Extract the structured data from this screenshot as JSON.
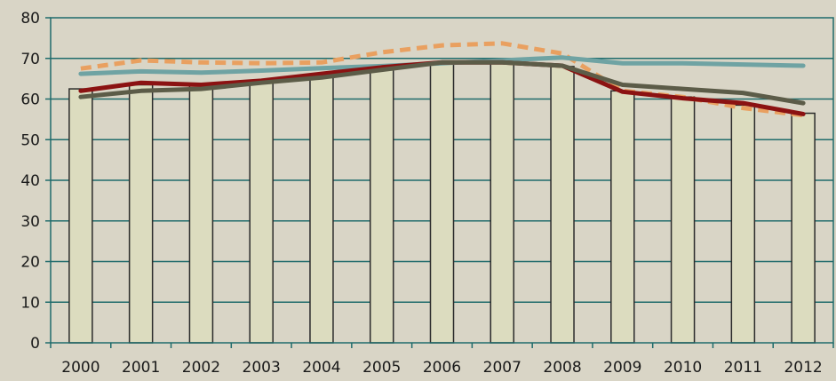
{
  "chart_data": {
    "type": "bar",
    "title": "",
    "xlabel": "",
    "ylabel": "",
    "ylim": [
      0,
      80
    ],
    "yticks": [
      0,
      10,
      20,
      30,
      40,
      50,
      60,
      70,
      80
    ],
    "grid": true,
    "legend": "none",
    "categories": [
      "2000",
      "2001",
      "2002",
      "2003",
      "2004",
      "2005",
      "2006",
      "2007",
      "2008",
      "2009",
      "2010",
      "2011",
      "2012"
    ],
    "bars": {
      "values": [
        62.5,
        63.5,
        63.2,
        64.5,
        66,
        67.5,
        68.8,
        69.3,
        68,
        62,
        60.5,
        58.5,
        56.5
      ],
      "color": "#dcdcbf",
      "edge_color": "#2b2b2b"
    },
    "lines": [
      {
        "values": [
          67.5,
          69.5,
          69,
          68.8,
          69,
          71.5,
          73.2,
          73.7,
          71.2,
          62,
          60.5,
          57.8,
          56
        ],
        "color": "#e9a060",
        "dash": true
      },
      {
        "values": [
          66.2,
          66.8,
          66.5,
          67,
          67.6,
          68.1,
          68.8,
          69.5,
          70.2,
          68.8,
          68.8,
          68.5,
          68.2
        ],
        "color": "#6fa3a3",
        "dash": false
      },
      {
        "values": [
          62,
          64,
          63.5,
          64.5,
          66.2,
          67.8,
          69,
          69,
          68.2,
          61.8,
          60.2,
          59,
          56.3
        ],
        "color": "#8b1212",
        "dash": false
      },
      {
        "values": [
          60.5,
          62,
          62.5,
          64,
          65.3,
          67.2,
          69,
          69,
          68.2,
          63.5,
          62.5,
          61.5,
          59
        ],
        "color": "#5c5c48",
        "dash": false
      }
    ]
  }
}
